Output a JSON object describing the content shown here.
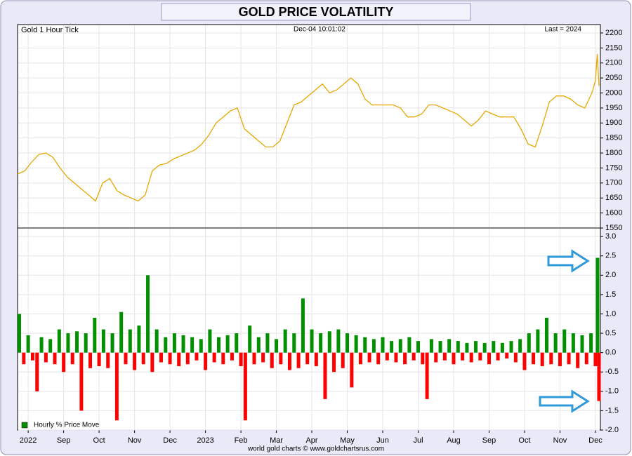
{
  "title": "GOLD PRICE VOLATILITY",
  "footer": "world gold charts © www.goldchartsrus.com",
  "chart_data": [
    {
      "type": "line",
      "label": "Gold 1 Hour Tick",
      "timestamp": "Dec-04  10:01:02",
      "last_label": "Last = 2024",
      "color": "#e6a800",
      "xlim": [
        -0.3,
        16.14
      ],
      "ylim": [
        1550,
        2228
      ],
      "yticks": [
        1550,
        1600,
        1650,
        1700,
        1750,
        1800,
        1850,
        1900,
        1950,
        2000,
        2050,
        2100,
        2150,
        2200
      ],
      "grid": true,
      "x": [
        -0.3,
        -0.1,
        0.1,
        0.3,
        0.5,
        0.7,
        0.9,
        1.1,
        1.3,
        1.5,
        1.7,
        1.9,
        2.1,
        2.3,
        2.5,
        2.7,
        2.9,
        3.1,
        3.3,
        3.5,
        3.7,
        3.9,
        4.1,
        4.3,
        4.5,
        4.7,
        4.9,
        5.1,
        5.3,
        5.5,
        5.7,
        5.9,
        6.1,
        6.3,
        6.5,
        6.7,
        6.9,
        7.1,
        7.3,
        7.5,
        7.7,
        7.9,
        8.1,
        8.3,
        8.5,
        8.7,
        8.9,
        9.1,
        9.3,
        9.5,
        9.7,
        9.9,
        10.1,
        10.3,
        10.5,
        10.7,
        10.9,
        11.1,
        11.3,
        11.5,
        11.7,
        11.9,
        12.1,
        12.3,
        12.5,
        12.7,
        12.9,
        13.1,
        13.3,
        13.5,
        13.7,
        13.9,
        14.1,
        14.3,
        14.5,
        14.7,
        14.9,
        15.1,
        15.3,
        15.5,
        15.7,
        15.9,
        16.0,
        16.05,
        16.1
      ],
      "values": [
        1730,
        1740,
        1770,
        1795,
        1800,
        1785,
        1750,
        1720,
        1700,
        1680,
        1660,
        1640,
        1700,
        1715,
        1675,
        1660,
        1650,
        1640,
        1660,
        1740,
        1760,
        1765,
        1780,
        1790,
        1800,
        1810,
        1830,
        1860,
        1900,
        1920,
        1940,
        1950,
        1880,
        1860,
        1840,
        1820,
        1820,
        1840,
        1900,
        1960,
        1970,
        1990,
        2010,
        2030,
        2000,
        2010,
        2030,
        2050,
        2030,
        1980,
        1960,
        1960,
        1960,
        1960,
        1950,
        1920,
        1920,
        1930,
        1960,
        1960,
        1950,
        1940,
        1930,
        1910,
        1890,
        1910,
        1940,
        1930,
        1920,
        1920,
        1920,
        1880,
        1830,
        1820,
        1890,
        1970,
        1990,
        1990,
        1980,
        1960,
        1950,
        2000,
        2040,
        2130,
        2024
      ]
    },
    {
      "type": "bar",
      "xlim": [
        -0.3,
        16.14
      ],
      "ylim": [
        -2.0,
        3.22
      ],
      "xticks": [
        {
          "value": 0,
          "label": "2022"
        },
        {
          "value": 1,
          "label": "Sep"
        },
        {
          "value": 2,
          "label": "Oct"
        },
        {
          "value": 3,
          "label": "Nov"
        },
        {
          "value": 4,
          "label": "Dec"
        },
        {
          "value": 5,
          "label": "2023"
        },
        {
          "value": 6,
          "label": "Feb"
        },
        {
          "value": 7,
          "label": "Mar"
        },
        {
          "value": 8,
          "label": "Apr"
        },
        {
          "value": 9,
          "label": "May"
        },
        {
          "value": 10,
          "label": "Jun"
        },
        {
          "value": 11,
          "label": "Jul"
        },
        {
          "value": 12,
          "label": "Aug"
        },
        {
          "value": 13,
          "label": "Sep"
        },
        {
          "value": 14,
          "label": "Oct"
        },
        {
          "value": 15,
          "label": "Nov"
        },
        {
          "value": 16,
          "label": "Dec"
        }
      ],
      "yticks": [
        {
          "value": 3,
          "label": "3.0"
        },
        2.5,
        {
          "value": 2,
          "label": "2.0"
        },
        1.5,
        {
          "value": 1,
          "label": "1.0"
        },
        0.5,
        {
          "value": 0,
          "label": "0.0"
        },
        -0.5,
        {
          "value": -1,
          "label": "-1.0"
        },
        -1.5,
        {
          "value": -2,
          "label": "-2.0"
        }
      ],
      "grid": true,
      "legend": "lower left",
      "series": [
        {
          "name": "Hourly % Price Move",
          "color": "#009000",
          "negative_color": "#ff0000",
          "x": [
            -0.25,
            -0.125,
            0,
            0.125,
            0.25,
            0.375,
            0.5,
            0.625,
            0.75,
            0.875,
            1,
            1.125,
            1.25,
            1.375,
            1.5,
            1.625,
            1.75,
            1.875,
            2,
            2.125,
            2.25,
            2.375,
            2.5,
            2.625,
            2.75,
            2.875,
            3,
            3.125,
            3.25,
            3.375,
            3.5,
            3.625,
            3.75,
            3.875,
            4,
            4.125,
            4.25,
            4.375,
            4.5,
            4.625,
            4.75,
            4.875,
            5,
            5.125,
            5.25,
            5.375,
            5.5,
            5.625,
            5.75,
            5.875,
            6,
            6.125,
            6.25,
            6.375,
            6.5,
            6.625,
            6.75,
            6.875,
            7,
            7.125,
            7.25,
            7.375,
            7.5,
            7.625,
            7.75,
            7.875,
            8,
            8.125,
            8.25,
            8.375,
            8.5,
            8.625,
            8.75,
            8.875,
            9,
            9.125,
            9.25,
            9.375,
            9.5,
            9.625,
            9.75,
            9.875,
            10,
            10.125,
            10.25,
            10.375,
            10.5,
            10.625,
            10.75,
            10.875,
            11,
            11.125,
            11.25,
            11.375,
            11.5,
            11.625,
            11.75,
            11.875,
            12,
            12.125,
            12.25,
            12.375,
            12.5,
            12.625,
            12.75,
            12.875,
            13,
            13.125,
            13.25,
            13.375,
            13.5,
            13.625,
            13.75,
            13.875,
            14,
            14.125,
            14.25,
            14.375,
            14.5,
            14.625,
            14.75,
            14.875,
            15,
            15.125,
            15.25,
            15.375,
            15.5,
            15.625,
            15.75,
            15.875,
            16,
            16.06,
            16.1
          ],
          "values": [
            1.0,
            -0.3,
            0.45,
            -0.2,
            -1.0,
            0.4,
            -0.25,
            0.35,
            -0.3,
            0.6,
            -0.5,
            0.5,
            -0.3,
            0.55,
            -1.5,
            0.5,
            -0.4,
            0.9,
            -0.35,
            0.6,
            -0.4,
            0.5,
            -1.75,
            1.05,
            -0.3,
            0.6,
            -0.45,
            0.7,
            -0.3,
            2.0,
            -0.5,
            0.6,
            -0.25,
            0.4,
            -0.3,
            0.5,
            -0.35,
            0.45,
            -0.3,
            0.4,
            -0.2,
            0.35,
            -0.45,
            0.6,
            -0.25,
            0.4,
            -0.3,
            0.45,
            -0.2,
            0.5,
            -0.35,
            -1.75,
            0.7,
            -0.3,
            0.4,
            -0.25,
            0.5,
            -0.4,
            0.35,
            -0.3,
            0.6,
            -0.45,
            0.5,
            -0.4,
            1.4,
            -0.3,
            0.6,
            -0.35,
            0.5,
            -1.2,
            0.55,
            -0.5,
            0.6,
            -0.4,
            0.5,
            -0.9,
            0.45,
            -0.3,
            0.4,
            -0.25,
            0.35,
            -0.3,
            0.4,
            -0.2,
            0.3,
            -0.25,
            0.35,
            -0.3,
            0.4,
            -0.2,
            0.3,
            -0.3,
            -1.2,
            0.35,
            -0.25,
            0.3,
            -0.2,
            0.35,
            -0.3,
            0.3,
            -0.2,
            0.25,
            -0.25,
            0.3,
            -0.2,
            0.25,
            -0.3,
            0.3,
            -0.2,
            0.25,
            -0.15,
            0.3,
            -0.25,
            0.35,
            -0.45,
            0.5,
            -0.3,
            0.6,
            -0.35,
            0.9,
            -0.3,
            0.5,
            -0.35,
            0.6,
            -0.3,
            0.5,
            -0.4,
            0.45,
            -0.3,
            0.5,
            -0.35,
            2.45,
            -1.25
          ]
        }
      ]
    }
  ]
}
